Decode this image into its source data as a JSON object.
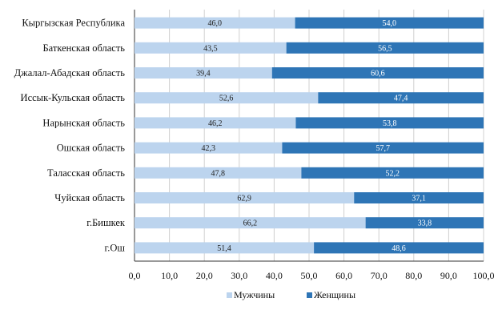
{
  "chart_data": {
    "type": "bar",
    "orientation": "horizontal",
    "stacked": true,
    "categories": [
      "Кыргызская Республика",
      "Баткенская область",
      "Джалал-Абадская область",
      "Иссык-Кульская область",
      "Нарынская область",
      "Ошская область",
      "Таласская область",
      "Чуйская область",
      "г.Бишкек",
      "г.Ош"
    ],
    "series": [
      {
        "name": "Мужчины",
        "color": "#bcd4ee",
        "values": [
          46.0,
          43.5,
          39.4,
          52.6,
          46.2,
          42.3,
          47.8,
          62.9,
          66.2,
          51.4
        ],
        "labels": [
          "46,0",
          "43,5",
          "39,4",
          "52,6",
          "46,2",
          "42,3",
          "47,8",
          "62,9",
          "66,2",
          "51,4"
        ]
      },
      {
        "name": "Женщины",
        "color": "#2e75b6",
        "values": [
          54.0,
          56.5,
          60.6,
          47.4,
          53.8,
          57.7,
          52.2,
          37.1,
          33.8,
          48.6
        ],
        "labels": [
          "54,0",
          "56,5",
          "60,6",
          "47,4",
          "53,8",
          "57,7",
          "52,2",
          "37,1",
          "33,8",
          "48,6"
        ]
      }
    ],
    "xlim": [
      0,
      100
    ],
    "xticks": [
      0,
      10,
      20,
      30,
      40,
      50,
      60,
      70,
      80,
      90,
      100
    ],
    "xtick_labels": [
      "0,0",
      "10,0",
      "20,0",
      "30,0",
      "40,0",
      "50,0",
      "60,0",
      "70,0",
      "80,0",
      "90,0",
      "100,0"
    ],
    "title": "",
    "xlabel": "",
    "ylabel": "",
    "grid": true,
    "legend": "bottom"
  }
}
